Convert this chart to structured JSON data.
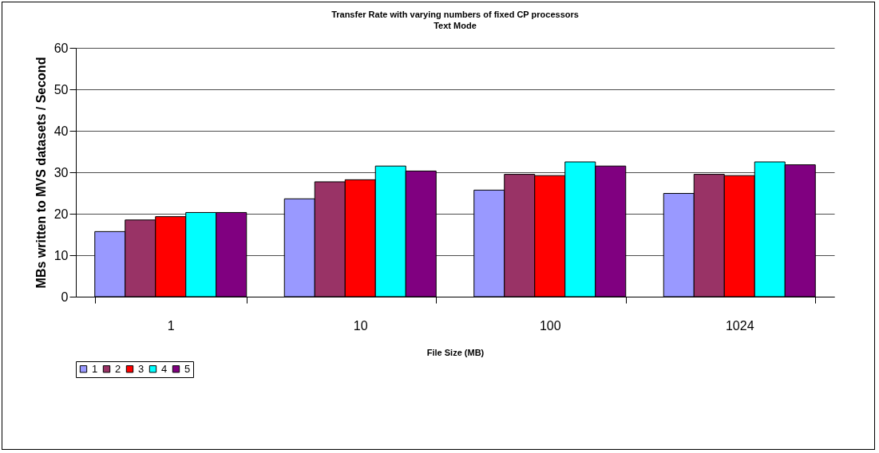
{
  "chart_data": {
    "type": "bar",
    "title": "Transfer Rate with varying numbers of fixed CP processors",
    "subtitle": "Text Mode",
    "xlabel": "File Size (MB)",
    "ylabel": "MBs written to MVS datasets / Second",
    "categories": [
      "1",
      "10",
      "100",
      "1024"
    ],
    "series": [
      {
        "name": "1",
        "color": "#9999ff",
        "values": [
          15.7,
          23.6,
          25.7,
          24.9
        ]
      },
      {
        "name": "2",
        "color": "#993366",
        "values": [
          18.5,
          27.7,
          29.5,
          29.5
        ]
      },
      {
        "name": "3",
        "color": "#ff0000",
        "values": [
          19.3,
          28.2,
          29.2,
          29.2
        ]
      },
      {
        "name": "4",
        "color": "#00ffff",
        "values": [
          20.3,
          31.5,
          32.5,
          32.5
        ]
      },
      {
        "name": "5",
        "color": "#800080",
        "values": [
          20.3,
          30.3,
          31.5,
          31.8
        ]
      }
    ],
    "ylim": [
      0,
      60
    ],
    "yticks": [
      0,
      10,
      20,
      30,
      40,
      50,
      60
    ],
    "grid": "y",
    "legend": "bottom"
  }
}
